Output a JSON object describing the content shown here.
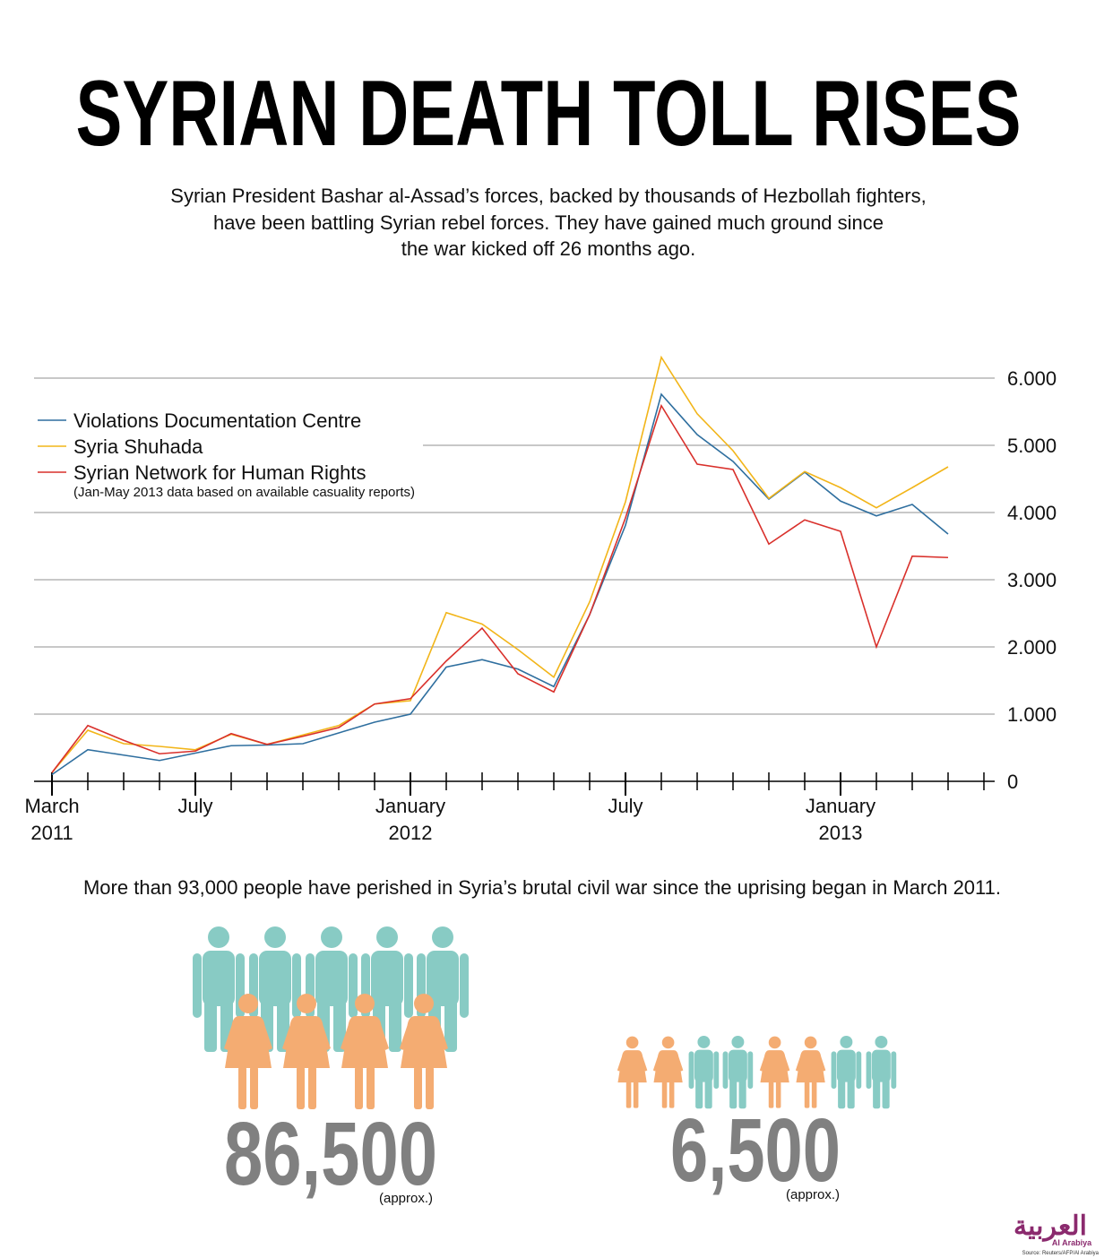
{
  "chart_data": {
    "type": "line",
    "title": "SYRIAN DEATH TOLL RISES",
    "subtitle": [
      "Syrian President Bashar al-Assad’s forces, backed by thousands of Hezbollah fighters,",
      "have been battling Syrian rebel forces. They have gained much ground since",
      "the war kicked off 26 months ago."
    ],
    "x": [
      "2011-03",
      "2011-04",
      "2011-05",
      "2011-06",
      "2011-07",
      "2011-08",
      "2011-09",
      "2011-10",
      "2011-11",
      "2011-12",
      "2012-01",
      "2012-02",
      "2012-03",
      "2012-04",
      "2012-05",
      "2012-06",
      "2012-07",
      "2012-08",
      "2012-09",
      "2012-10",
      "2012-11",
      "2012-12",
      "2013-01",
      "2013-02",
      "2013-03",
      "2013-04",
      "2013-05"
    ],
    "xticks": [
      {
        "value": "2011-03",
        "label": "March 2011"
      },
      {
        "value": "2011-07",
        "label": "July"
      },
      {
        "value": "2012-01",
        "label": "January 2012"
      },
      {
        "value": "2012-07",
        "label": "July"
      },
      {
        "value": "2013-01",
        "label": "January 2013"
      }
    ],
    "series": [
      {
        "name": "Violations Documentation Centre",
        "color": "#2f6f9f",
        "values": [
          100,
          470,
          390,
          310,
          420,
          530,
          540,
          560,
          720,
          880,
          1000,
          1700,
          1810,
          1670,
          1410,
          2480,
          3810,
          5760,
          5160,
          4760,
          4200,
          4600,
          4170,
          3950,
          4120,
          3680,
          null
        ]
      },
      {
        "name": "Syria Shuhada",
        "color": "#f2b519",
        "values": [
          130,
          760,
          560,
          520,
          470,
          700,
          550,
          690,
          830,
          1150,
          1200,
          2510,
          2340,
          1960,
          1550,
          2670,
          4160,
          6310,
          5470,
          4920,
          4210,
          4610,
          4370,
          4070,
          4370,
          4680,
          null
        ]
      },
      {
        "name": "Syrian Network for Human Rights",
        "color": "#d9302b",
        "values": [
          130,
          830,
          610,
          410,
          450,
          710,
          550,
          670,
          800,
          1150,
          1230,
          1790,
          2280,
          1600,
          1330,
          2480,
          3920,
          5590,
          4720,
          4640,
          3530,
          3890,
          3720,
          2000,
          3350,
          3330,
          null
        ]
      }
    ],
    "legend_note": "(Jan-May 2013 data based on available casuality reports)",
    "ylim": [
      0,
      6000
    ],
    "yticks": [
      0,
      {
        "value": 1000,
        "label": "1.000"
      },
      {
        "value": 2000,
        "label": "2.000"
      },
      {
        "value": 3000,
        "label": "3.000"
      },
      {
        "value": 4000,
        "label": "4.000"
      },
      {
        "value": 5000,
        "label": "5.000"
      },
      {
        "value": 6000,
        "label": "6.000"
      }
    ],
    "grid": true,
    "legend": "upper left"
  },
  "caption": "More than 93,000 people have perished in Syria’s brutal civil war since the uprising began in March 2011.",
  "stats": [
    {
      "number": "86,500",
      "note": "(approx.)"
    },
    {
      "number": "6,500",
      "note": "(approx.)"
    }
  ],
  "brand": {
    "arabic": "العربية",
    "latin": "Al Arabiya"
  },
  "source": "Source: Reuters/AFP/Al Arabiya"
}
